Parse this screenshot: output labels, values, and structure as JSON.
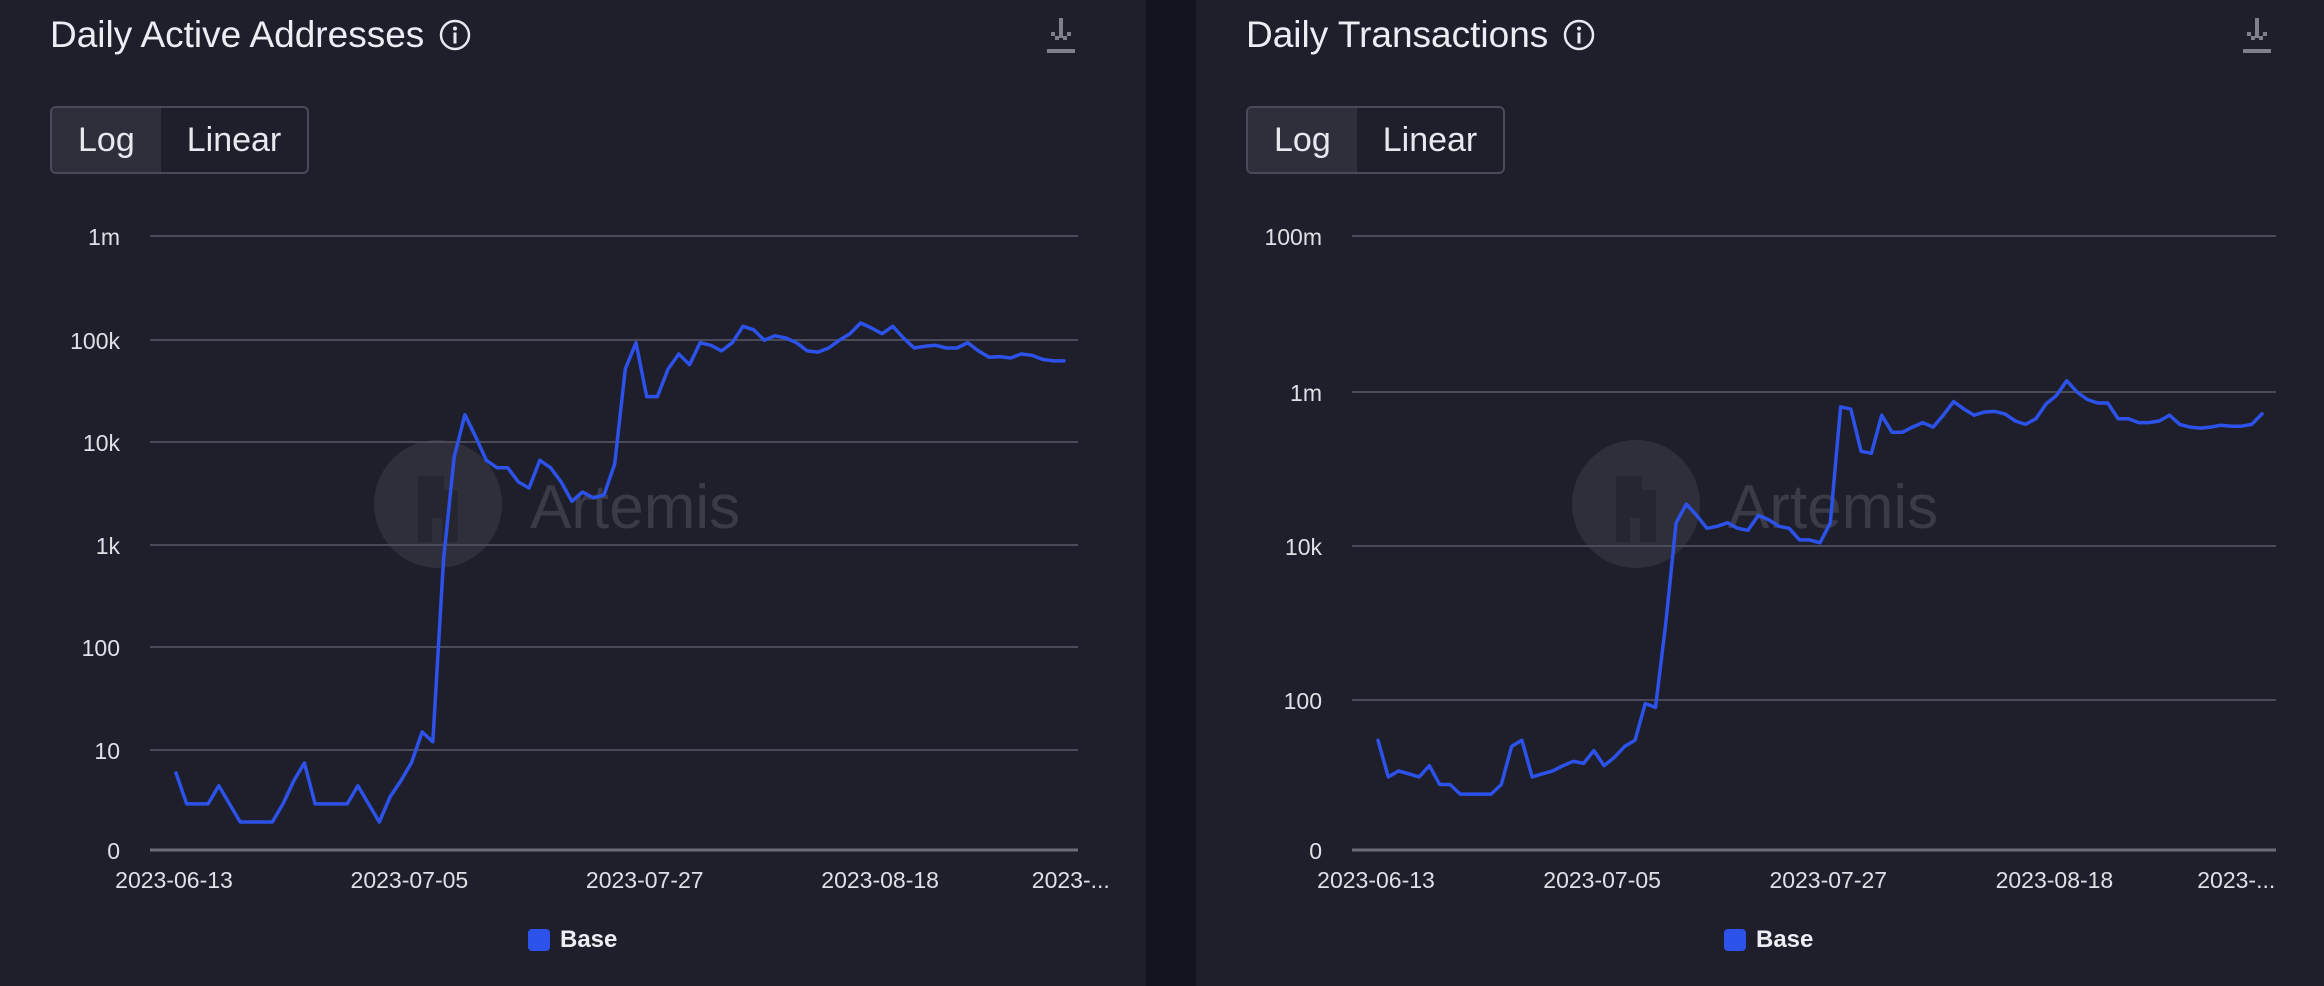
{
  "colors": {
    "series": "#2c52ea",
    "grid": "#4a4b58",
    "axis": "#6b6c78",
    "panel": "#1e1f2b"
  },
  "icons": {
    "info": "info-icon",
    "download": "download-icon"
  },
  "watermark_text": "Artemis",
  "toggle": {
    "log_label": "Log",
    "linear_label": "Linear"
  },
  "chart_data": [
    {
      "type": "line",
      "title": "Daily Active Addresses",
      "scale": "log",
      "y_tick_labels": [
        "0",
        "10",
        "100",
        "1k",
        "10k",
        "100k",
        "1m"
      ],
      "x_tick_labels": [
        "2023-06-13",
        "2023-07-05",
        "2023-07-27",
        "2023-08-18",
        "2023-..."
      ],
      "x_tick_index": [
        0,
        22,
        44,
        66,
        87
      ],
      "legend": "Base",
      "series": [
        {
          "name": "Base",
          "values": [
            6,
            3,
            3,
            3,
            4.5,
            3,
            2,
            2,
            2,
            2,
            3,
            5,
            7.5,
            3,
            3,
            3,
            3,
            4.5,
            3,
            2,
            3.5,
            5,
            7.5,
            15,
            12,
            700,
            7000,
            18000,
            11000,
            6500,
            5500,
            5500,
            4000,
            3500,
            6500,
            5500,
            4000,
            2600,
            3200,
            2800,
            3000,
            6000,
            50000,
            90000,
            27000,
            27000,
            50000,
            70000,
            55000,
            90000,
            85000,
            75000,
            90000,
            130000,
            120000,
            95000,
            105000,
            100000,
            90000,
            75000,
            73000,
            80000,
            95000,
            110000,
            140000,
            125000,
            110000,
            130000,
            100000,
            80000,
            83000,
            85000,
            80000,
            80000,
            90000,
            75000,
            65000,
            66000,
            64000,
            70000,
            68000,
            62000,
            60000,
            60000
          ]
        }
      ]
    },
    {
      "type": "line",
      "title": "Daily Transactions",
      "scale": "log",
      "y_tick_labels": [
        "0",
        "100",
        "10k",
        "1m",
        "100m"
      ],
      "x_tick_labels": [
        "2023-06-13",
        "2023-07-05",
        "2023-07-27",
        "2023-08-18",
        "2023-..."
      ],
      "x_tick_index": [
        0,
        22,
        44,
        66,
        87
      ],
      "legend": "Base",
      "series": [
        {
          "name": "Base",
          "values": [
            30,
            10,
            12,
            11,
            10,
            14,
            8,
            8,
            6,
            6,
            6,
            6,
            8,
            25,
            30,
            10,
            11,
            12,
            14,
            16,
            15,
            22,
            14,
            18,
            25,
            30,
            90,
            80,
            1000,
            20000,
            35000,
            25000,
            17000,
            18000,
            20000,
            17000,
            16000,
            25000,
            22000,
            18000,
            17000,
            12000,
            12000,
            11000,
            20000,
            640000,
            600000,
            170000,
            160000,
            500000,
            300000,
            300000,
            350000,
            400000,
            350000,
            500000,
            750000,
            600000,
            500000,
            550000,
            560000,
            520000,
            420000,
            380000,
            450000,
            700000,
            900000,
            1400000,
            1000000,
            800000,
            720000,
            720000,
            450000,
            450000,
            400000,
            400000,
            420000,
            500000,
            380000,
            350000,
            340000,
            350000,
            370000,
            360000,
            360000,
            380000,
            520000
          ]
        }
      ]
    }
  ]
}
